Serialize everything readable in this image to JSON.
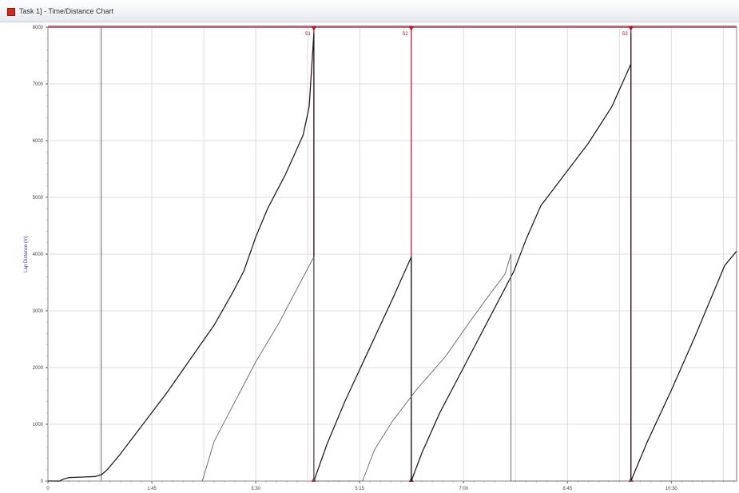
{
  "window": {
    "title": "Task 1] - Time/Distance Chart",
    "icon": "app-logo-icon"
  },
  "chart_data": {
    "type": "line",
    "title": "",
    "xlabel": "",
    "ylabel": "Lap Distance (m)",
    "xlim": [
      0,
      11.6
    ],
    "ylim": [
      0,
      8000
    ],
    "grid": true,
    "y_ticks": [
      0,
      1000,
      2000,
      3000,
      4000,
      5000,
      6000,
      7000,
      8000
    ],
    "y_tick_labels": [
      "0",
      "1000",
      "2000",
      "3000",
      "4000",
      "5000",
      "6000",
      "7000",
      "8000"
    ],
    "x_ticks": [
      0,
      1.75,
      3.5,
      5.25,
      7.0,
      8.75,
      10.5
    ],
    "x_tick_labels": [
      "0",
      "1:45",
      "3:30",
      "5:15",
      "7:00",
      "8:45",
      "10:30"
    ],
    "colors": {
      "distance_line": "#202020",
      "lap_line": "#707070",
      "marker": "#c0102a",
      "grid": "#dcdcdc"
    },
    "markers": [
      {
        "x": 4.48,
        "label": "S1"
      },
      {
        "x": 6.12,
        "label": "S2"
      },
      {
        "x": 9.82,
        "label": "S3"
      }
    ],
    "series": [
      {
        "values": [
          [
            0,
            0
          ],
          [
            0.2,
            0
          ],
          [
            0.25,
            30
          ],
          [
            0.35,
            60
          ],
          [
            0.6,
            70
          ],
          [
            0.8,
            80
          ],
          [
            0.9,
            110
          ],
          [
            1.0,
            200
          ],
          [
            1.2,
            450
          ],
          [
            1.6,
            1000
          ],
          [
            2.0,
            1550
          ],
          [
            2.4,
            2150
          ],
          [
            2.8,
            2750
          ],
          [
            3.1,
            3300
          ],
          [
            3.3,
            3700
          ],
          [
            3.5,
            4300
          ],
          [
            3.7,
            4800
          ],
          [
            4.0,
            5400
          ],
          [
            4.3,
            6100
          ],
          [
            4.4,
            6600
          ],
          [
            4.48,
            7900
          ],
          [
            4.48,
            0
          ],
          [
            4.7,
            650
          ],
          [
            5.0,
            1400
          ],
          [
            5.4,
            2300
          ],
          [
            5.8,
            3200
          ],
          [
            6.12,
            3950
          ],
          [
            6.12,
            0
          ],
          [
            6.3,
            500
          ],
          [
            6.6,
            1200
          ],
          [
            7.0,
            2000
          ],
          [
            7.4,
            2800
          ],
          [
            7.65,
            3300
          ],
          [
            7.85,
            3700
          ],
          [
            8.05,
            4250
          ],
          [
            8.3,
            4850
          ],
          [
            8.7,
            5400
          ],
          [
            9.1,
            5950
          ],
          [
            9.5,
            6600
          ],
          [
            9.82,
            7350
          ],
          [
            9.82,
            7900
          ],
          [
            9.82,
            0
          ],
          [
            10.1,
            700
          ],
          [
            10.5,
            1600
          ],
          [
            10.9,
            2550
          ],
          [
            11.2,
            3300
          ],
          [
            11.4,
            3800
          ],
          [
            11.6,
            4050
          ]
        ]
      },
      {
        "values": [
          [
            2.6,
            0
          ],
          [
            2.8,
            700
          ],
          [
            3.1,
            1300
          ],
          [
            3.5,
            2100
          ],
          [
            3.9,
            2800
          ],
          [
            4.2,
            3400
          ],
          [
            4.48,
            3950
          ],
          [
            4.48,
            0
          ],
          [
            5.3,
            0
          ],
          [
            5.5,
            550
          ],
          [
            5.8,
            1050
          ],
          [
            6.2,
            1600
          ],
          [
            6.7,
            2200
          ],
          [
            7.1,
            2800
          ],
          [
            7.45,
            3300
          ],
          [
            7.7,
            3650
          ],
          [
            7.8,
            4000
          ],
          [
            7.8,
            0
          ],
          [
            9.8,
            0
          ],
          [
            11.6,
            0
          ],
          [
            11.6,
            4000
          ]
        ]
      }
    ]
  }
}
